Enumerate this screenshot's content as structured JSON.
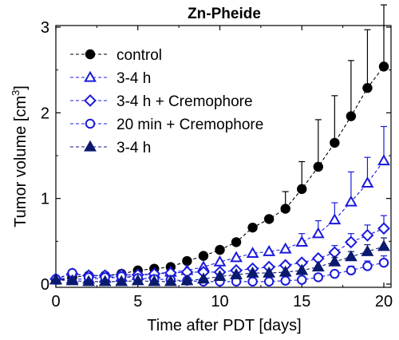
{
  "chart_data": {
    "type": "line",
    "title": "Zn-Pheide",
    "xlabel": "Time after PDT [days]",
    "ylabel": "Tumor volume [cm3]",
    "ylabel_parts": {
      "main": "Tumor volume [cm",
      "sup": "3",
      "end": "]"
    },
    "xlim": [
      0,
      20.8
    ],
    "ylim": [
      0,
      3.05
    ],
    "xticks": [
      0,
      5,
      10,
      15,
      20
    ],
    "xtick_labels": [
      "0",
      "5",
      "10",
      "15",
      "20"
    ],
    "yticks": [
      0,
      1,
      2,
      3
    ],
    "ytick_labels": [
      "0",
      "1",
      "2",
      "3"
    ],
    "grid": false,
    "legend_position": "top-left",
    "series": [
      {
        "name": "control",
        "marker": "circle",
        "filled": true,
        "color": "#000000",
        "x": [
          0,
          1,
          2,
          3,
          4,
          5,
          6,
          7,
          8,
          9,
          10,
          11,
          12,
          13,
          14,
          15,
          16,
          17,
          18,
          19,
          20
        ],
        "y": [
          0.05,
          0.08,
          0.1,
          0.1,
          0.12,
          0.16,
          0.18,
          0.2,
          0.27,
          0.33,
          0.4,
          0.49,
          0.66,
          0.76,
          0.88,
          1.11,
          1.37,
          1.65,
          1.96,
          2.29,
          2.54
        ],
        "err": [
          0,
          0,
          0,
          0,
          0,
          0,
          0,
          0,
          0,
          0,
          0,
          0,
          0,
          0,
          0.2,
          0.32,
          0.55,
          0.55,
          0.65,
          0.68,
          0.72
        ]
      },
      {
        "name": "3-4 h",
        "marker": "triangle",
        "filled": false,
        "color": "#1a1adc",
        "x": [
          0,
          1,
          2,
          3,
          4,
          5,
          6,
          7,
          8,
          9,
          10,
          11,
          12,
          13,
          14,
          15,
          16,
          17,
          18,
          19,
          20
        ],
        "y": [
          0.05,
          0.06,
          0.06,
          0.07,
          0.08,
          0.1,
          0.12,
          0.14,
          0.16,
          0.2,
          0.26,
          0.31,
          0.36,
          0.38,
          0.41,
          0.49,
          0.59,
          0.75,
          0.96,
          1.18,
          1.44
        ],
        "err": [
          0,
          0,
          0,
          0,
          0,
          0,
          0,
          0,
          0,
          0,
          0,
          0,
          0,
          0,
          0,
          0.1,
          0.15,
          0.2,
          0.35,
          0.3,
          0.4
        ]
      },
      {
        "name": "3-4 h + Cremophore",
        "marker": "diamond",
        "filled": false,
        "color": "#1a1adc",
        "x": [
          0,
          1,
          2,
          3,
          4,
          5,
          6,
          7,
          8,
          9,
          10,
          11,
          12,
          13,
          14,
          15,
          16,
          17,
          18,
          19,
          20
        ],
        "y": [
          0.06,
          0.12,
          0.1,
          0.1,
          0.11,
          0.11,
          0.12,
          0.13,
          0.14,
          0.14,
          0.14,
          0.16,
          0.18,
          0.2,
          0.22,
          0.25,
          0.3,
          0.37,
          0.49,
          0.57,
          0.65
        ],
        "err": [
          0,
          0,
          0,
          0,
          0,
          0,
          0,
          0,
          0,
          0,
          0,
          0,
          0,
          0,
          0,
          0,
          0,
          0.08,
          0.1,
          0.12,
          0.15
        ]
      },
      {
        "name": "20 min + Cremophore",
        "marker": "circle",
        "filled": false,
        "color": "#1a1adc",
        "x": [
          0,
          1,
          2,
          3,
          4,
          5,
          6,
          7,
          8,
          9,
          10,
          11,
          12,
          13,
          14,
          15,
          16,
          17,
          18,
          19,
          20
        ],
        "y": [
          0.06,
          0.13,
          0.08,
          0.08,
          0.09,
          0.07,
          0.06,
          0.05,
          0.04,
          0.03,
          0.03,
          0.03,
          0.03,
          0.03,
          0.04,
          0.05,
          0.08,
          0.12,
          0.16,
          0.21,
          0.25
        ],
        "err": [
          0,
          0,
          0,
          0,
          0,
          0,
          0,
          0,
          0,
          0,
          0,
          0,
          0,
          0,
          0,
          0,
          0,
          0.04,
          0.05,
          0.06,
          0.08
        ]
      },
      {
        "name": "3-4 h",
        "marker": "triangle",
        "filled": true,
        "color": "#0b1a6e",
        "x": [
          0,
          1,
          2,
          3,
          4,
          5,
          6,
          7,
          8,
          9,
          10,
          11,
          12,
          13,
          14,
          15,
          16,
          17,
          18,
          19,
          20
        ],
        "y": [
          0.05,
          0.04,
          0.03,
          0.03,
          0.03,
          0.04,
          0.03,
          0.03,
          0.04,
          0.06,
          0.09,
          0.11,
          0.13,
          0.13,
          0.14,
          0.16,
          0.2,
          0.26,
          0.32,
          0.38,
          0.44
        ],
        "err": [
          0,
          0,
          0,
          0,
          0,
          0,
          0,
          0,
          0,
          0,
          0,
          0,
          0,
          0,
          0,
          0,
          0,
          0.05,
          0.06,
          0.08,
          0.1
        ]
      }
    ]
  }
}
